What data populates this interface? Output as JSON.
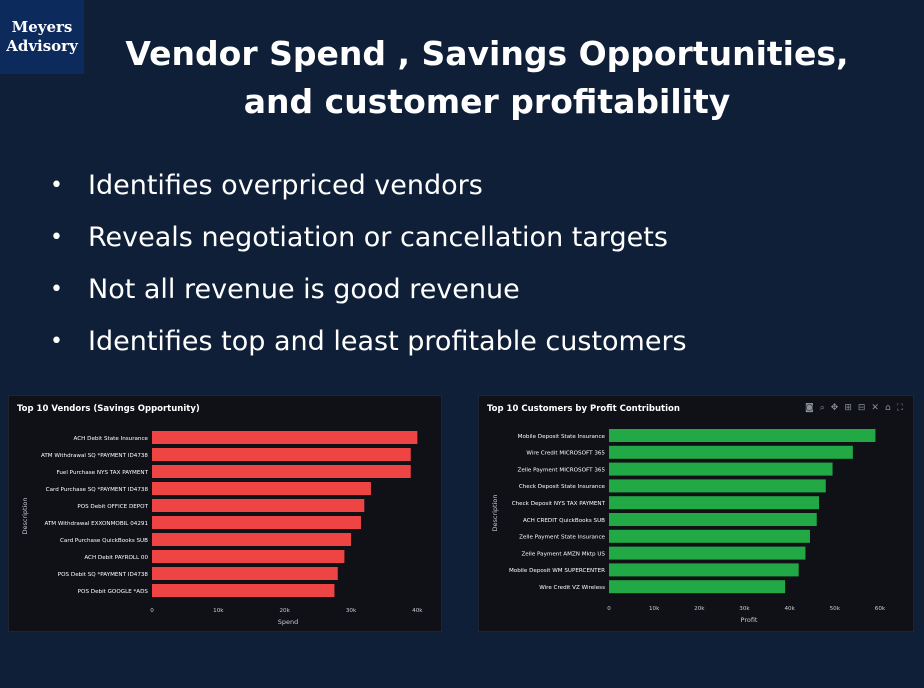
{
  "logo": {
    "line1": "Meyers",
    "line2": "Advisory"
  },
  "title": {
    "line1": "Vendor Spend , Savings Opportunities,",
    "line2": "and customer profitability"
  },
  "bullets": [
    "Identifies overpriced vendors",
    "Reveals negotiation or cancellation targets",
    "Not all revenue is good revenue",
    "Identifies top and least profitable customers"
  ],
  "toolbar_icons": [
    "camera-icon",
    "zoom-icon",
    "pan-icon",
    "zoom-in-icon",
    "zoom-out-icon",
    "autoscale-icon",
    "home-icon",
    "fullscreen-icon"
  ],
  "chart_data": [
    {
      "type": "bar",
      "orientation": "horizontal",
      "title": "Top 10 Vendors (Savings Opportunity)",
      "xlabel": "Spend",
      "ylabel": "Description",
      "color": "#ef4444",
      "categories": [
        "ACH Debit State Insurance",
        "ATM Withdrawal SQ *PAYMENT ID4738",
        "Fuel Purchase NYS TAX PAYMENT",
        "Card Purchase SQ *PAYMENT ID4738",
        "POS Debit OFFICE DEPOT",
        "ATM Withdrawal EXXONMOBIL 04291",
        "Card Purchase QuickBooks SUB",
        "ACH Debit PAYROLL 00",
        "POS Debit SQ *PAYMENT ID4738",
        "POS Debit GOOGLE *ADS"
      ],
      "values": [
        40000,
        39000,
        39000,
        33000,
        32000,
        31500,
        30000,
        29000,
        28000,
        27500
      ],
      "xlim": [
        0,
        41000
      ],
      "xticks": [
        0,
        10000,
        20000,
        30000,
        40000
      ],
      "xtick_labels": [
        "0",
        "10k",
        "20k",
        "30k",
        "40k"
      ],
      "grid": false
    },
    {
      "type": "bar",
      "orientation": "horizontal",
      "title": "Top 10 Customers by Profit Contribution",
      "xlabel": "Profit",
      "ylabel": "Description",
      "color": "#22a845",
      "categories": [
        "Mobile Deposit State Insurance",
        "Wire Credit MICROSOFT 365",
        "Zelle Payment MICROSOFT 365",
        "Check Deposit State Insurance",
        "Check Deposit NYS TAX PAYMENT",
        "ACH CREDIT QuickBooks SUB",
        "Zelle Payment State Insurance",
        "Zelle Payment AMZN Mktp US",
        "Mobile Deposit WM SUPERCENTER",
        "Wire Credit VZ Wireless"
      ],
      "values": [
        59000,
        54000,
        49500,
        48000,
        46500,
        46000,
        44500,
        43500,
        42000,
        39000
      ],
      "xlim": [
        0,
        62000
      ],
      "xticks": [
        0,
        10000,
        20000,
        30000,
        40000,
        50000,
        60000
      ],
      "xtick_labels": [
        "0",
        "10k",
        "20k",
        "30k",
        "40k",
        "50k",
        "60k"
      ],
      "grid": false
    }
  ]
}
